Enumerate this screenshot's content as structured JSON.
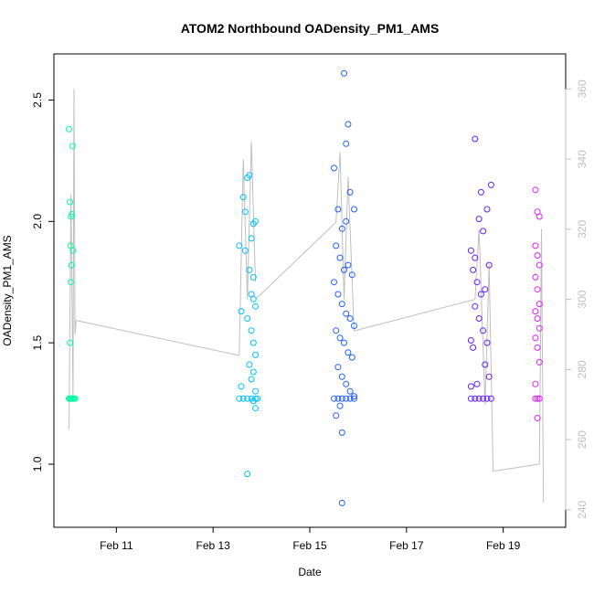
{
  "chart_data": {
    "type": "scatter",
    "title": "ATOM2 Northbound OADensity_PM1_AMS",
    "xlabel": "Date",
    "ylabel": "OADensity_PM1_AMS",
    "x_axis": {
      "type": "date",
      "range": [
        "Feb 09 17:00",
        "Feb 20 07:00"
      ],
      "ticks": [
        "Feb 11",
        "Feb 13",
        "Feb 15",
        "Feb 17",
        "Feb 19"
      ]
    },
    "y_axis_left": {
      "range": [
        0.74,
        2.69
      ],
      "ticks": [
        1.0,
        1.5,
        2.0,
        2.5
      ]
    },
    "y_axis_right": {
      "range": [
        235,
        370
      ],
      "ticks": [
        240,
        260,
        280,
        300,
        320,
        340,
        360
      ],
      "color": "#bebebe"
    },
    "grid": false,
    "series": [
      {
        "color": "#00ffa0",
        "points": [
          [
            "Feb 10 00:30",
            2.38
          ],
          [
            "Feb 10 01:00",
            2.08
          ],
          [
            "Feb 10 01:30",
            2.02
          ],
          [
            "Feb 10 02:00",
            2.03
          ],
          [
            "Feb 10 01:15",
            1.9
          ],
          [
            "Feb 10 01:45",
            1.82
          ],
          [
            "Feb 10 01:20",
            1.75
          ],
          [
            "Feb 10 02:30",
            1.88
          ],
          [
            "Feb 10 02:15",
            2.31
          ],
          [
            "Feb 10 01:00",
            1.5
          ],
          [
            "Feb 10 00:30",
            1.27
          ],
          [
            "Feb 10 01:00",
            1.27
          ],
          [
            "Feb 10 01:30",
            1.27
          ],
          [
            "Feb 10 02:00",
            1.27
          ],
          [
            "Feb 10 02:30",
            1.27
          ],
          [
            "Feb 10 03:00",
            1.27
          ],
          [
            "Feb 10 03:30",
            1.27
          ]
        ]
      },
      {
        "color": "#00c0ff",
        "points": [
          [
            "Feb 13 13:00",
            1.9
          ],
          [
            "Feb 13 15:00",
            2.1
          ],
          [
            "Feb 13 16:00",
            2.04
          ],
          [
            "Feb 13 17:00",
            2.18
          ],
          [
            "Feb 13 18:00",
            2.19
          ],
          [
            "Feb 13 19:00",
            1.93
          ],
          [
            "Feb 13 20:00",
            1.99
          ],
          [
            "Feb 13 21:00",
            2.0
          ],
          [
            "Feb 13 16:00",
            1.88
          ],
          [
            "Feb 13 18:00",
            1.8
          ],
          [
            "Feb 13 20:00",
            1.77
          ],
          [
            "Feb 13 19:00",
            1.7
          ],
          [
            "Feb 13 20:00",
            1.68
          ],
          [
            "Feb 13 21:00",
            1.65
          ],
          [
            "Feb 13 14:00",
            1.63
          ],
          [
            "Feb 13 17:00",
            1.6
          ],
          [
            "Feb 13 19:00",
            1.55
          ],
          [
            "Feb 13 20:00",
            1.5
          ],
          [
            "Feb 13 21:00",
            1.45
          ],
          [
            "Feb 13 18:00",
            1.41
          ],
          [
            "Feb 13 20:00",
            1.38
          ],
          [
            "Feb 13 19:00",
            1.35
          ],
          [
            "Feb 13 14:00",
            1.32
          ],
          [
            "Feb 13 21:00",
            1.3
          ],
          [
            "Feb 13 20:00",
            1.26
          ],
          [
            "Feb 13 21:00",
            1.23
          ],
          [
            "Feb 13 17:00",
            0.96
          ],
          [
            "Feb 13 13:00",
            1.27
          ],
          [
            "Feb 13 15:00",
            1.27
          ],
          [
            "Feb 13 17:00",
            1.27
          ],
          [
            "Feb 13 19:00",
            1.27
          ],
          [
            "Feb 13 21:00",
            1.27
          ],
          [
            "Feb 13 22:00",
            1.27
          ]
        ]
      },
      {
        "color": "#2060ff",
        "points": [
          [
            "Feb 15 12:00",
            2.22
          ],
          [
            "Feb 15 14:00",
            2.05
          ],
          [
            "Feb 15 16:00",
            1.97
          ],
          [
            "Feb 15 18:00",
            2.0
          ],
          [
            "Feb 15 20:00",
            2.12
          ],
          [
            "Feb 15 22:00",
            2.05
          ],
          [
            "Feb 15 13:00",
            1.9
          ],
          [
            "Feb 15 15:00",
            1.85
          ],
          [
            "Feb 15 17:00",
            1.8
          ],
          [
            "Feb 15 19:00",
            1.82
          ],
          [
            "Feb 15 21:00",
            1.78
          ],
          [
            "Feb 15 12:00",
            1.75
          ],
          [
            "Feb 15 14:00",
            1.7
          ],
          [
            "Feb 15 16:00",
            1.66
          ],
          [
            "Feb 15 18:00",
            1.62
          ],
          [
            "Feb 15 20:00",
            1.6
          ],
          [
            "Feb 15 22:00",
            1.57
          ],
          [
            "Feb 15 13:00",
            1.55
          ],
          [
            "Feb 15 15:00",
            1.52
          ],
          [
            "Feb 15 17:00",
            1.5
          ],
          [
            "Feb 15 19:00",
            1.46
          ],
          [
            "Feb 15 21:00",
            1.44
          ],
          [
            "Feb 15 14:00",
            1.4
          ],
          [
            "Feb 15 16:00",
            1.36
          ],
          [
            "Feb 15 18:00",
            1.33
          ],
          [
            "Feb 15 20:00",
            1.3
          ],
          [
            "Feb 15 22:00",
            1.28
          ],
          [
            "Feb 15 15:00",
            1.24
          ],
          [
            "Feb 15 13:00",
            1.2
          ],
          [
            "Feb 15 16:00",
            1.13
          ],
          [
            "Feb 15 17:00",
            2.61
          ],
          [
            "Feb 15 19:00",
            2.4
          ],
          [
            "Feb 15 18:00",
            2.32
          ],
          [
            "Feb 15 16:00",
            0.84
          ],
          [
            "Feb 15 12:00",
            1.27
          ],
          [
            "Feb 15 14:00",
            1.27
          ],
          [
            "Feb 15 16:00",
            1.27
          ],
          [
            "Feb 15 18:00",
            1.27
          ],
          [
            "Feb 15 20:00",
            1.27
          ],
          [
            "Feb 15 22:00",
            1.27
          ]
        ]
      },
      {
        "color": "#6020ff",
        "points": [
          [
            "Feb 18 08:00",
            1.88
          ],
          [
            "Feb 18 10:00",
            1.85
          ],
          [
            "Feb 18 12:00",
            2.01
          ],
          [
            "Feb 18 14:00",
            1.96
          ],
          [
            "Feb 18 16:00",
            2.05
          ],
          [
            "Feb 18 18:00",
            2.15
          ],
          [
            "Feb 18 09:00",
            1.8
          ],
          [
            "Feb 18 11:00",
            1.75
          ],
          [
            "Feb 18 13:00",
            1.7
          ],
          [
            "Feb 18 15:00",
            1.72
          ],
          [
            "Feb 18 17:00",
            1.82
          ],
          [
            "Feb 18 10:00",
            1.65
          ],
          [
            "Feb 18 12:00",
            1.6
          ],
          [
            "Feb 18 14:00",
            1.55
          ],
          [
            "Feb 18 16:00",
            1.5
          ],
          [
            "Feb 18 08:00",
            1.51
          ],
          [
            "Feb 18 09:00",
            1.48
          ],
          [
            "Feb 18 15:00",
            1.41
          ],
          [
            "Feb 18 17:00",
            1.36
          ],
          [
            "Feb 18 11:00",
            1.33
          ],
          [
            "Feb 18 08:00",
            1.32
          ],
          [
            "Feb 18 10:00",
            2.34
          ],
          [
            "Feb 18 13:00",
            2.12
          ],
          [
            "Feb 18 08:00",
            1.27
          ],
          [
            "Feb 18 10:00",
            1.27
          ],
          [
            "Feb 18 12:00",
            1.27
          ],
          [
            "Feb 18 14:00",
            1.27
          ],
          [
            "Feb 18 16:00",
            1.27
          ],
          [
            "Feb 18 18:00",
            1.27
          ]
        ]
      },
      {
        "color": "#e020ff",
        "points": [
          [
            "Feb 19 16:00",
            2.13
          ],
          [
            "Feb 19 17:00",
            2.04
          ],
          [
            "Feb 19 18:00",
            2.02
          ],
          [
            "Feb 19 16:00",
            1.9
          ],
          [
            "Feb 19 17:00",
            1.86
          ],
          [
            "Feb 19 18:00",
            1.82
          ],
          [
            "Feb 19 16:00",
            1.77
          ],
          [
            "Feb 19 17:00",
            1.72
          ],
          [
            "Feb 19 18:00",
            1.66
          ],
          [
            "Feb 19 16:00",
            1.63
          ],
          [
            "Feb 19 17:00",
            1.6
          ],
          [
            "Feb 19 18:00",
            1.56
          ],
          [
            "Feb 19 16:00",
            1.52
          ],
          [
            "Feb 19 17:00",
            1.48
          ],
          [
            "Feb 19 18:00",
            1.42
          ],
          [
            "Feb 19 16:00",
            1.33
          ],
          [
            "Feb 19 17:00",
            1.19
          ],
          [
            "Feb 19 16:00",
            1.27
          ],
          [
            "Feb 19 17:00",
            1.27
          ],
          [
            "Feb 19 18:00",
            1.27
          ]
        ]
      }
    ],
    "line_series": {
      "color": "#bebebe",
      "axis": "right",
      "segments": [
        [
          [
            "Feb 10 00:30",
            263
          ],
          [
            "Feb 10 01:30",
            330
          ],
          [
            "Feb 10 02:30",
            272
          ],
          [
            "Feb 10 03:00",
            360
          ],
          [
            "Feb 10 03:30",
            290
          ],
          [
            "Feb 10 04:00",
            294
          ]
        ],
        [
          [
            "Feb 10 04:00",
            294
          ],
          [
            "Feb 13 13:00",
            284
          ]
        ],
        [
          [
            "Feb 13 13:00",
            284
          ],
          [
            "Feb 13 15:00",
            340
          ],
          [
            "Feb 13 17:00",
            300
          ],
          [
            "Feb 13 19:00",
            345
          ],
          [
            "Feb 13 21:00",
            305
          ]
        ],
        [
          [
            "Feb 13 21:00",
            300
          ],
          [
            "Feb 15 13:00",
            322
          ]
        ],
        [
          [
            "Feb 15 13:00",
            322
          ],
          [
            "Feb 15 15:00",
            342
          ],
          [
            "Feb 15 17:00",
            300
          ],
          [
            "Feb 15 19:00",
            335
          ],
          [
            "Feb 15 22:00",
            291
          ]
        ],
        [
          [
            "Feb 15 22:00",
            291
          ],
          [
            "Feb 18 10:00",
            300
          ]
        ],
        [
          [
            "Feb 18 10:00",
            300
          ],
          [
            "Feb 18 12:00",
            320
          ],
          [
            "Feb 18 15:00",
            270
          ],
          [
            "Feb 18 17:00",
            310
          ],
          [
            "Feb 18 19:00",
            251
          ]
        ],
        [
          [
            "Feb 18 19:00",
            251
          ],
          [
            "Feb 19 18:00",
            253
          ]
        ],
        [
          [
            "Feb 19 18:00",
            253
          ],
          [
            "Feb 19 19:00",
            320
          ],
          [
            "Feb 19 20:00",
            242
          ]
        ]
      ]
    }
  }
}
